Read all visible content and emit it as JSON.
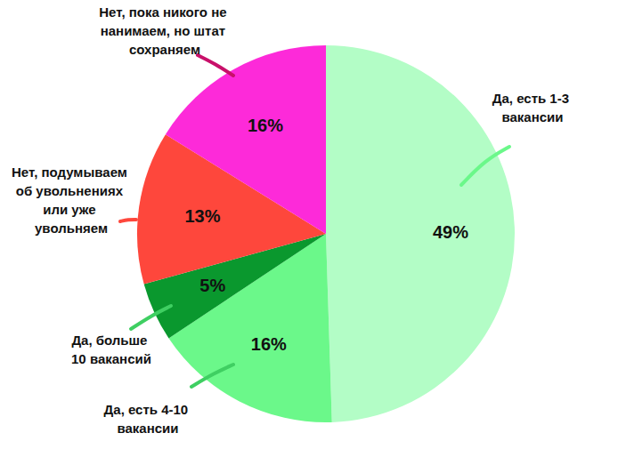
{
  "chart_data": {
    "type": "pie",
    "categories": [
      "Да, есть 1-3 вакансии",
      "Да, есть 4-10 вакансии",
      "Да, больше 10 вакансий",
      "Нет, подумываем об увольнениях или уже увольняем",
      "Нет, пока никого не нанимаем, но штат сохраняем"
    ],
    "values": [
      49,
      16,
      5,
      13,
      16
    ],
    "value_labels": [
      "49%",
      "16%",
      "5%",
      "13%",
      "16%"
    ],
    "colors": [
      "#b3fdc6",
      "#6bf88a",
      "#0a982e",
      "#fe473c",
      "#fd2ad9"
    ],
    "data_labels": true
  }
}
